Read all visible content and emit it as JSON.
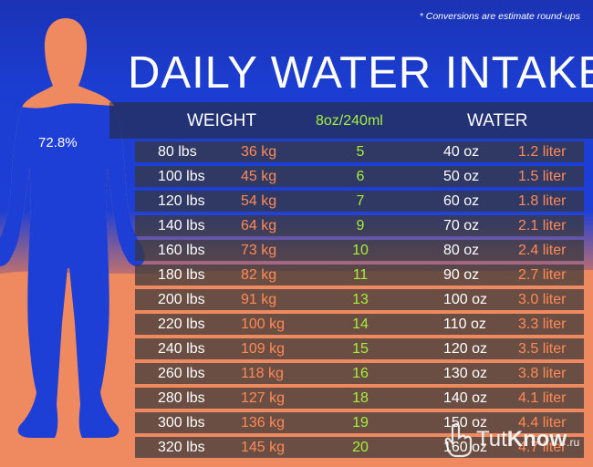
{
  "footnote": "* Conversions are estimate round-ups",
  "title": "DAILY WATER INTAKE",
  "figure": {
    "body_water_percent": "72.8%",
    "level_fraction": 0.728
  },
  "columns": {
    "weight": "WEIGHT",
    "glass": "8oz/240ml",
    "water": "WATER"
  },
  "rows": [
    {
      "lbs": "80 lbs",
      "kg": "36 kg",
      "glasses": "5",
      "oz": "40 oz",
      "liter": "1.2 liter"
    },
    {
      "lbs": "100 lbs",
      "kg": "45 kg",
      "glasses": "6",
      "oz": "50 oz",
      "liter": "1.5 liter"
    },
    {
      "lbs": "120 lbs",
      "kg": "54 kg",
      "glasses": "7",
      "oz": "60 oz",
      "liter": "1.8 liter"
    },
    {
      "lbs": "140 lbs",
      "kg": "64 kg",
      "glasses": "9",
      "oz": "70 oz",
      "liter": "2.1 liter"
    },
    {
      "lbs": "160 lbs",
      "kg": "73 kg",
      "glasses": "10",
      "oz": "80 oz",
      "liter": "2.4 liter"
    },
    {
      "lbs": "180 lbs",
      "kg": "82 kg",
      "glasses": "11",
      "oz": "90 oz",
      "liter": "2.7 liter"
    },
    {
      "lbs": "200 lbs",
      "kg": "91 kg",
      "glasses": "13",
      "oz": "100 oz",
      "liter": "3.0 liter"
    },
    {
      "lbs": "220 lbs",
      "kg": "100 kg",
      "glasses": "14",
      "oz": "110 oz",
      "liter": "3.3 liter"
    },
    {
      "lbs": "240 lbs",
      "kg": "109 kg",
      "glasses": "15",
      "oz": "120 oz",
      "liter": "3.5 liter"
    },
    {
      "lbs": "260 lbs",
      "kg": "118 kg",
      "glasses": "16",
      "oz": "130 oz",
      "liter": "3.8 liter"
    },
    {
      "lbs": "280 lbs",
      "kg": "127 kg",
      "glasses": "18",
      "oz": "140 oz",
      "liter": "4.1 liter"
    },
    {
      "lbs": "300 lbs",
      "kg": "136 kg",
      "glasses": "19",
      "oz": "150 oz",
      "liter": "4.4 liter"
    },
    {
      "lbs": "320 lbs",
      "kg": "145 kg",
      "glasses": "20",
      "oz": "160 oz",
      "liter": "4.7 liter"
    }
  ],
  "watermark": {
    "part1": "Tut",
    "part2": "Know",
    "suffix": ".ru"
  },
  "colors": {
    "blue": "#1d3fd6",
    "orange": "#ef8a60",
    "green": "#a6f03a",
    "kg_orange": "#ff8a55"
  }
}
